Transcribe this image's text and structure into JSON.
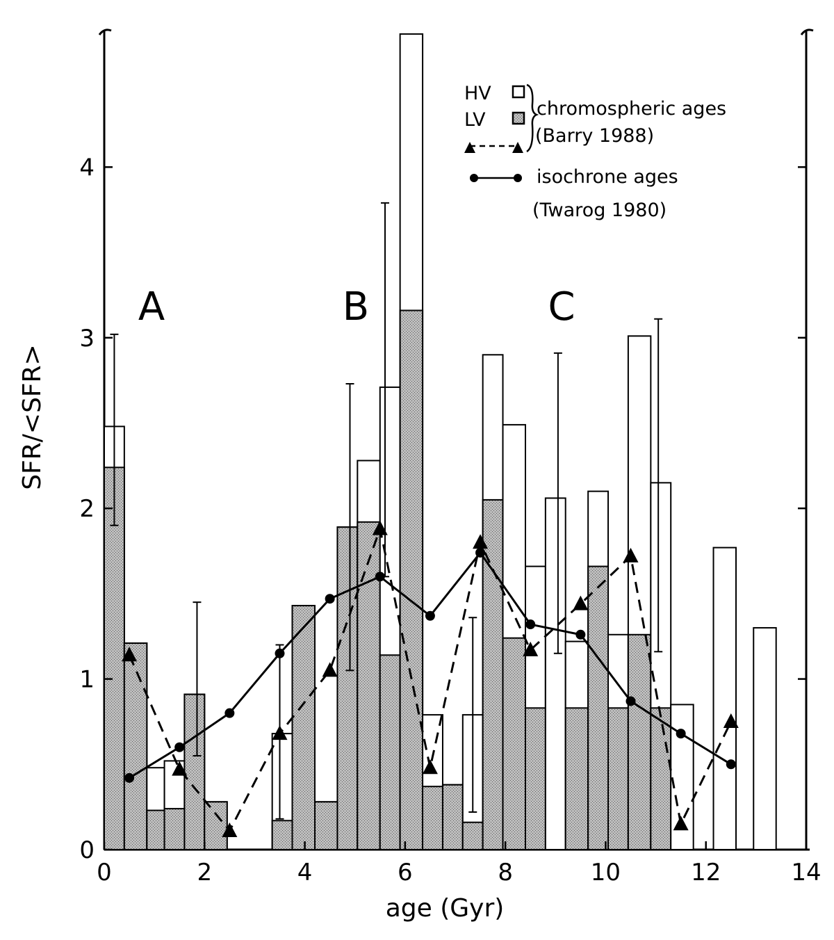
{
  "chart_data": {
    "type": "bar",
    "xlabel": "age (Gyr)",
    "ylabel": "SFR/<SFR>",
    "xlim": [
      0,
      14
    ],
    "ylim": [
      0,
      4.8
    ],
    "x_ticks": [
      "0",
      "2",
      "4",
      "6",
      "8",
      "10",
      "12",
      "14"
    ],
    "y_ticks": [
      "0",
      "1",
      "2",
      "3",
      "4"
    ],
    "region_labels": [
      {
        "text": "A",
        "x": 1.0,
        "y": 3.1
      },
      {
        "text": "B",
        "x": 5.1,
        "y": 3.1
      },
      {
        "text": "C",
        "x": 9.6,
        "y": 3.1
      }
    ],
    "legend": {
      "hv_label": "HV",
      "lv_label": "LV",
      "chromo_label": "chromospheric ages",
      "chromo_ref": "(Barry 1988)",
      "iso_label": "isochrone ages",
      "iso_ref": "(Twarog 1980)"
    },
    "bars": [
      {
        "x0": 0.0,
        "x1": 0.4,
        "hv": 2.48,
        "lv": 2.24
      },
      {
        "x0": 0.4,
        "x1": 0.85,
        "hv": 1.21,
        "lv": 1.21
      },
      {
        "x0": 0.85,
        "x1": 1.2,
        "hv": 0.48,
        "lv": 0.23
      },
      {
        "x0": 1.2,
        "x1": 1.6,
        "hv": 0.52,
        "lv": 0.24
      },
      {
        "x0": 1.6,
        "x1": 2.0,
        "hv": 0.91,
        "lv": 0.91
      },
      {
        "x0": 2.0,
        "x1": 2.45,
        "hv": 0.28,
        "lv": 0.28
      },
      {
        "x0": 3.35,
        "x1": 3.75,
        "hv": 0.68,
        "lv": 0.17
      },
      {
        "x0": 3.75,
        "x1": 4.2,
        "hv": 1.43,
        "lv": 1.43
      },
      {
        "x0": 4.2,
        "x1": 4.65,
        "hv": 0.28,
        "lv": 0.28
      },
      {
        "x0": 4.65,
        "x1": 5.05,
        "hv": 1.89,
        "lv": 1.89
      },
      {
        "x0": 5.05,
        "x1": 5.5,
        "hv": 2.28,
        "lv": 1.92
      },
      {
        "x0": 5.5,
        "x1": 5.9,
        "hv": 2.71,
        "lv": 1.14
      },
      {
        "x0": 5.9,
        "x1": 6.35,
        "hv": 4.78,
        "lv": 3.16
      },
      {
        "x0": 6.35,
        "x1": 6.75,
        "hv": 0.79,
        "lv": 0.37
      },
      {
        "x0": 6.75,
        "x1": 7.15,
        "hv": 0.38,
        "lv": 0.38
      },
      {
        "x0": 7.15,
        "x1": 7.55,
        "hv": 0.79,
        "lv": 0.16
      },
      {
        "x0": 7.55,
        "x1": 7.95,
        "hv": 2.9,
        "lv": 2.05
      },
      {
        "x0": 7.95,
        "x1": 8.4,
        "hv": 2.49,
        "lv": 1.24
      },
      {
        "x0": 8.4,
        "x1": 8.8,
        "hv": 1.66,
        "lv": 0.83
      },
      {
        "x0": 8.8,
        "x1": 9.2,
        "hv": 2.06,
        "lv": 0.0
      },
      {
        "x0": 9.2,
        "x1": 9.65,
        "hv": 1.22,
        "lv": 0.83
      },
      {
        "x0": 9.65,
        "x1": 10.05,
        "hv": 2.1,
        "lv": 1.66
      },
      {
        "x0": 10.05,
        "x1": 10.45,
        "hv": 1.26,
        "lv": 0.83
      },
      {
        "x0": 10.45,
        "x1": 10.9,
        "hv": 3.01,
        "lv": 1.26
      },
      {
        "x0": 10.9,
        "x1": 11.3,
        "hv": 2.15,
        "lv": 0.83
      },
      {
        "x0": 11.3,
        "x1": 11.75,
        "hv": 0.85,
        "lv": 0.0
      },
      {
        "x0": 12.15,
        "x1": 12.6,
        "hv": 1.77,
        "lv": 0.0
      },
      {
        "x0": 12.95,
        "x1": 13.4,
        "hv": 1.3,
        "lv": 0.0
      }
    ],
    "error_bars": [
      {
        "x": 0.2,
        "y0": 1.9,
        "y1": 3.02
      },
      {
        "x": 1.85,
        "y0": 0.55,
        "y1": 1.45
      },
      {
        "x": 3.5,
        "y0": 0.18,
        "y1": 1.2
      },
      {
        "x": 4.9,
        "y0": 1.05,
        "y1": 2.73
      },
      {
        "x": 5.6,
        "y0": 1.6,
        "y1": 3.79
      },
      {
        "x": 7.35,
        "y0": 0.22,
        "y1": 1.36
      },
      {
        "x": 9.05,
        "y0": 1.15,
        "y1": 2.91
      },
      {
        "x": 11.05,
        "y0": 1.16,
        "y1": 3.11
      }
    ],
    "series": [
      {
        "style": "dashed-triangle",
        "x": [
          0.5,
          1.5,
          2.5,
          3.5,
          4.5,
          5.5,
          6.5,
          7.5,
          8.5,
          9.5,
          10.5,
          11.5,
          12.5
        ],
        "y": [
          1.14,
          0.47,
          0.11,
          0.68,
          1.05,
          1.88,
          0.48,
          1.8,
          1.17,
          1.44,
          1.72,
          0.15,
          0.75
        ]
      },
      {
        "style": "solid-circle",
        "x": [
          0.5,
          1.5,
          2.5,
          3.5,
          4.5,
          5.5,
          6.5,
          7.5,
          8.5,
          9.5,
          10.5,
          11.5,
          12.5
        ],
        "y": [
          0.42,
          0.6,
          0.8,
          1.15,
          1.47,
          1.6,
          1.37,
          1.74,
          1.32,
          1.26,
          0.87,
          0.68,
          0.5
        ]
      }
    ]
  }
}
